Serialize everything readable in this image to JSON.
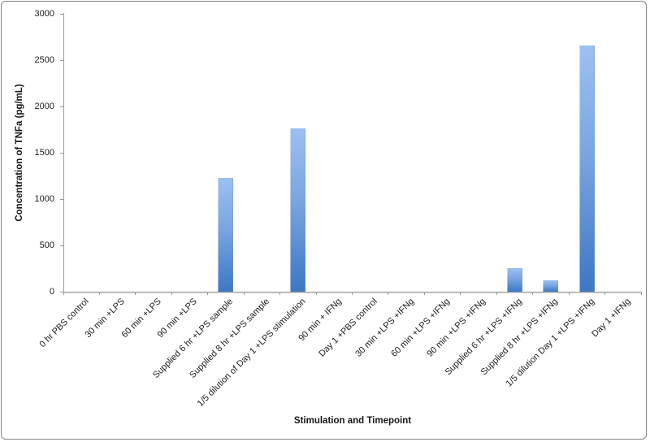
{
  "frame": {
    "background_color": "#ffffff",
    "border_color": "#848484"
  },
  "chart_data": {
    "type": "bar",
    "title": "",
    "xlabel": "Stimulation and Timepoint",
    "ylabel": "Concentration of TNFa (pg/mL)",
    "ylim": [
      0,
      3000
    ],
    "ytick_interval": 500,
    "yticks": [
      0,
      500,
      1000,
      1500,
      2000,
      2500,
      3000
    ],
    "grid": false,
    "legend_position": "none",
    "bar_color_top": "#9cc0f2",
    "bar_color_bottom": "#3d77c4",
    "axis_color": "#9a9a9a",
    "text_color": "#1c1c1c",
    "categories": [
      "0 hr PBS control",
      "30 min +LPS",
      "60 min +LPS",
      "90 min +LPS",
      "Supplied 6 hr +LPS sample",
      "Supplied 8 hr +LPS sample",
      "1/5 dilution of Day 1 +LPS stimulation",
      "90 min + IFNg",
      "Day 1 +PBS control",
      "30 min +LPS +IFNg",
      "60 min +LPS +IFNg",
      "90 min +LPS +IFNg",
      "Supplied 6 hr +LPS +IFNg",
      "Supplied 8 hr +LPS +IFNg",
      "1/5 dilution Day 1 +LPS +IFNg",
      "Day 1 +IFNg"
    ],
    "values": [
      0,
      0,
      0,
      0,
      1230,
      0,
      1760,
      0,
      0,
      0,
      0,
      0,
      255,
      120,
      2660,
      0
    ]
  }
}
